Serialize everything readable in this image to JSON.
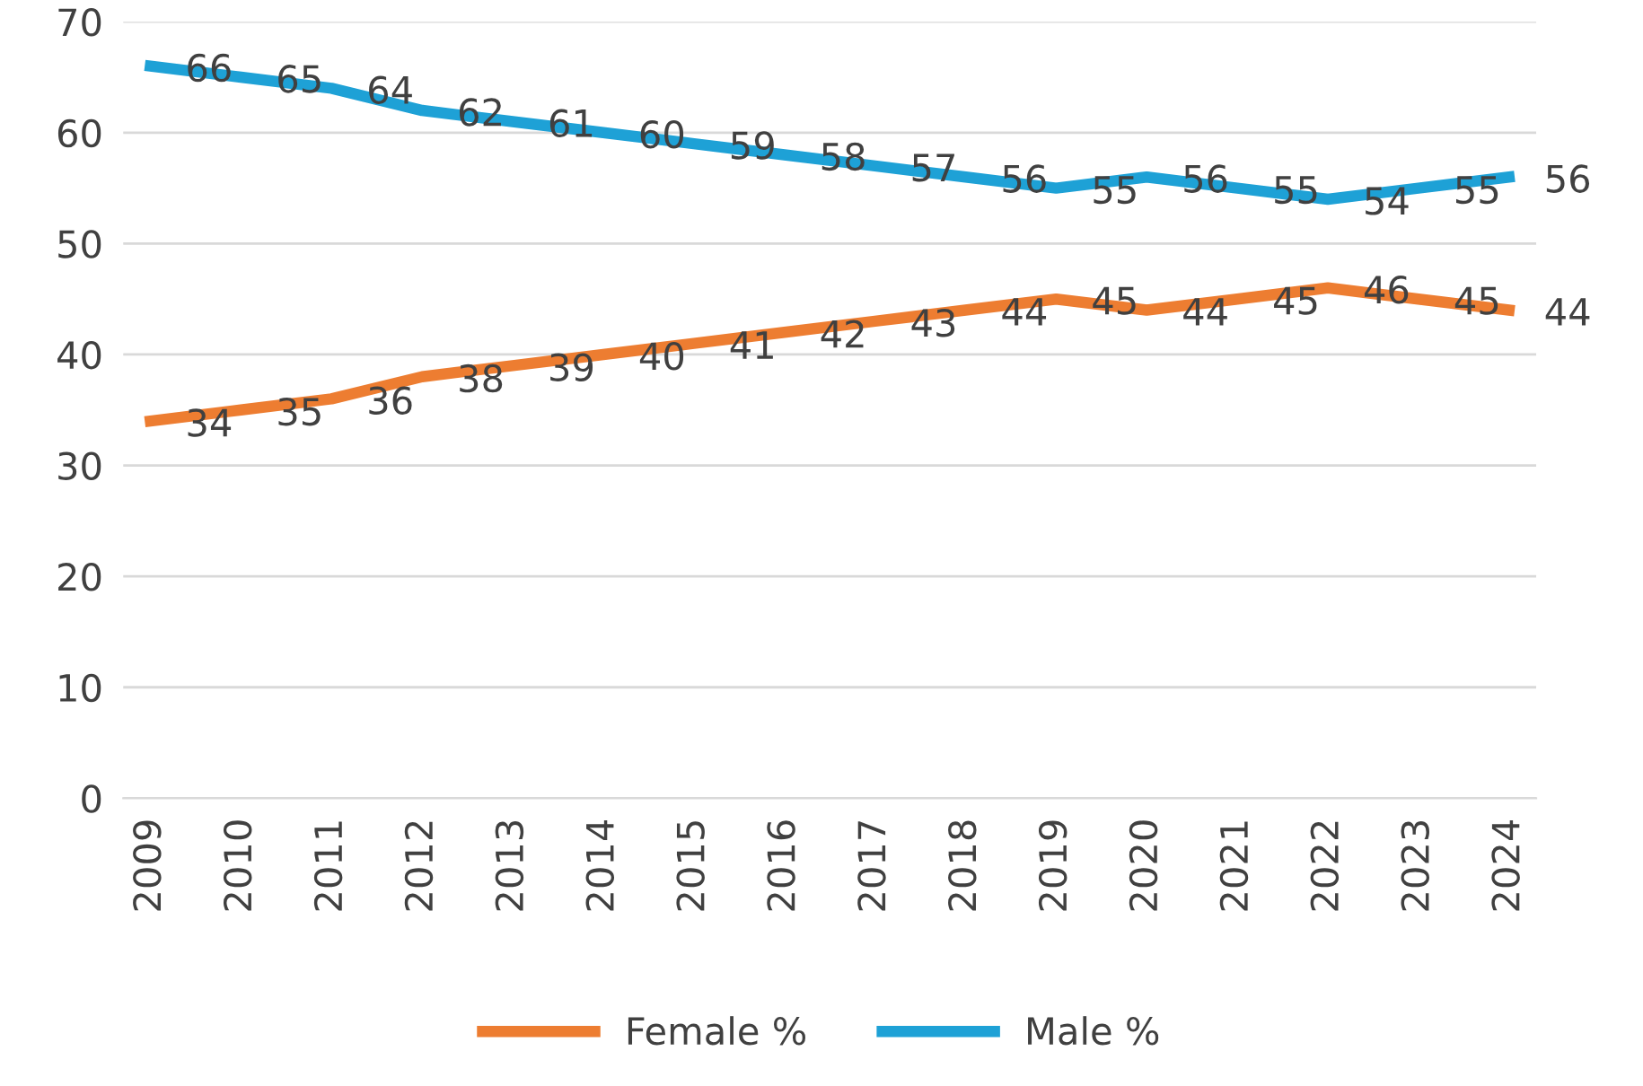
{
  "chart_data": {
    "type": "line",
    "categories": [
      "2009",
      "2010",
      "2011",
      "2012",
      "2013",
      "2014",
      "2015",
      "2016",
      "2017",
      "2018",
      "2019",
      "2020",
      "2021",
      "2022",
      "2023",
      "2024"
    ],
    "series": [
      {
        "name": "Female %",
        "color": "#ed7d31",
        "values": [
          34,
          35,
          36,
          38,
          39,
          40,
          41,
          42,
          43,
          44,
          45,
          44,
          45,
          46,
          45,
          44
        ]
      },
      {
        "name": "Male %",
        "color": "#1ea1d6",
        "values": [
          66,
          65,
          64,
          62,
          61,
          60,
          59,
          58,
          57,
          56,
          55,
          56,
          55,
          54,
          55,
          56
        ]
      }
    ],
    "ylim": [
      0,
      70
    ],
    "yticks": [
      0,
      10,
      20,
      30,
      40,
      50,
      60,
      70
    ],
    "grid": "y",
    "legend": "bottom",
    "data_labels": true,
    "marker": "none",
    "line_style": "solid"
  }
}
